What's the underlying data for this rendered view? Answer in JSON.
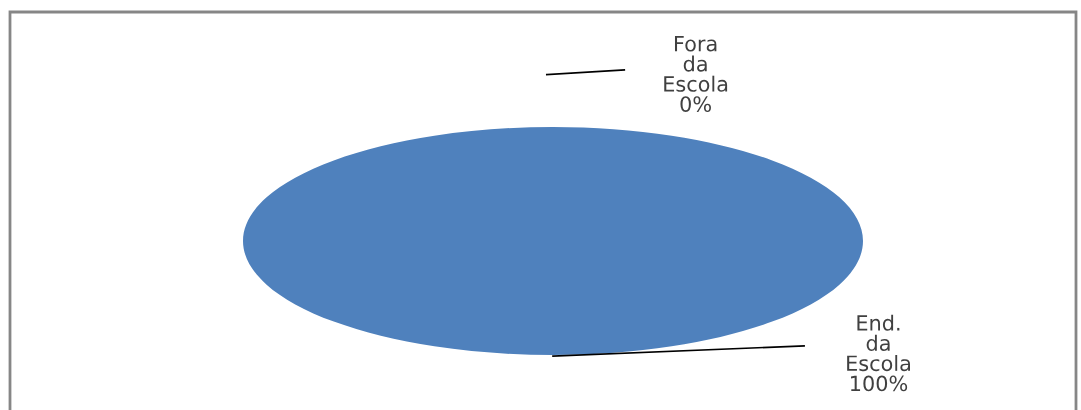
{
  "chart_data": {
    "type": "pie",
    "categories": [
      "Fora da Escola",
      "End. da Escola"
    ],
    "values": [
      0,
      100
    ],
    "colors": [
      "#c0504d",
      "#4f81bd"
    ],
    "value_labels": [
      "0%",
      "100%"
    ]
  }
}
